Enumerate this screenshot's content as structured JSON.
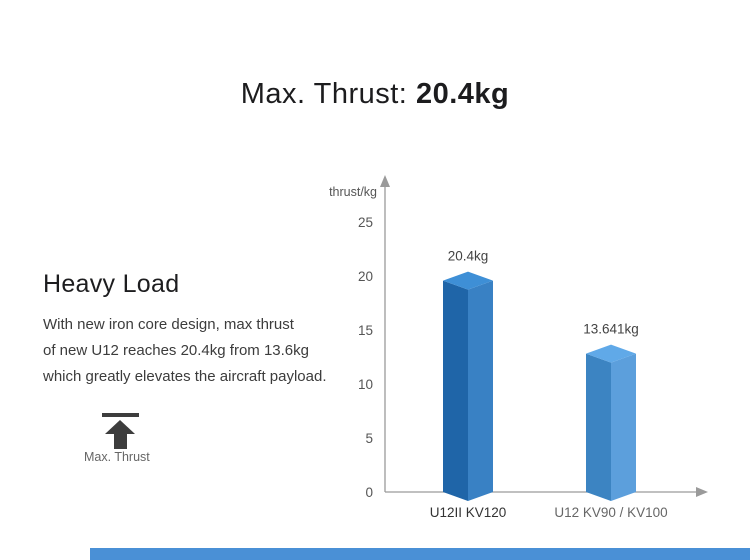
{
  "title": {
    "regular": "Max. Thrust: ",
    "bold": "20.4kg"
  },
  "left_panel": {
    "heading": "Heavy Load",
    "body_lines": [
      "With new iron core design, max thrust",
      "of new U12 reaches 20.4kg from 13.6kg",
      "which greatly elevates the aircraft payload."
    ],
    "icon_label": "Max. Thrust"
  },
  "chart_data": {
    "type": "bar",
    "style": "3d-column",
    "title": "",
    "xlabel": "",
    "ylabel": "thrust/kg",
    "ylim": [
      0,
      25
    ],
    "yticks": [
      0,
      5,
      10,
      15,
      20,
      25
    ],
    "grid": false,
    "legend": false,
    "categories": [
      "U12II KV120",
      "U12 KV90 / KV100"
    ],
    "values": [
      20.4,
      13.641
    ],
    "value_labels": [
      "20.4kg",
      "13.641kg"
    ],
    "bar_colors": [
      {
        "top": "#3E8FD6",
        "left": "#1F65A8",
        "right": "#3981C4"
      },
      {
        "top": "#60A9E8",
        "left": "#3C84C2",
        "right": "#5C9FDC"
      }
    ],
    "category_label_colors": [
      "#333333",
      "#666666"
    ],
    "axis_color": "#9A9A9A"
  },
  "footer": {
    "accent_bar_color": "#4A90D6"
  }
}
